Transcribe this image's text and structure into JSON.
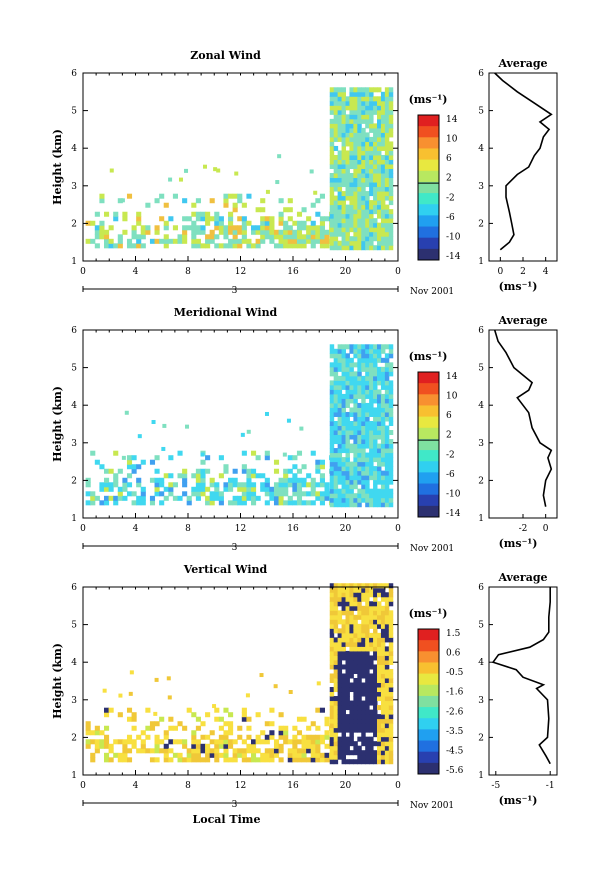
{
  "chart_data": [
    {
      "type": "heatmap",
      "title": "Zonal Wind",
      "ylabel": "Height (km)",
      "x_ticks": [
        "0",
        "4",
        "8",
        "12",
        "16",
        "20",
        "0"
      ],
      "y_ticks": [
        "1",
        "2",
        "3",
        "4",
        "5",
        "6"
      ],
      "xlim": [
        0,
        24
      ],
      "ylim": [
        1,
        6
      ],
      "date_marker": "3",
      "date_label": "Nov 2001",
      "colorbar": {
        "unit": "(ms⁻¹)",
        "tick_labels": [
          "14",
          "10",
          "6",
          "2",
          "-2",
          "-6",
          "-10",
          "-14"
        ],
        "range": [
          -14,
          14
        ]
      },
      "profile": {
        "title": "Average",
        "x_ticks": [
          "0",
          "2",
          "4"
        ],
        "y_ticks": [
          "1",
          "2",
          "3",
          "4",
          "5",
          "6"
        ],
        "xlabel": "(ms⁻¹)",
        "xlim": [
          -1,
          5
        ],
        "points": [
          [
            0,
            1.3
          ],
          [
            0.8,
            1.5
          ],
          [
            1.2,
            1.7
          ],
          [
            1.0,
            2.0
          ],
          [
            0.8,
            2.3
          ],
          [
            0.5,
            2.7
          ],
          [
            0.5,
            3.0
          ],
          [
            1.5,
            3.3
          ],
          [
            2.5,
            3.5
          ],
          [
            3.0,
            3.8
          ],
          [
            3.5,
            4.0
          ],
          [
            3.8,
            4.3
          ],
          [
            4.3,
            4.5
          ],
          [
            3.5,
            4.7
          ],
          [
            4.5,
            4.9
          ],
          [
            3.0,
            5.2
          ],
          [
            1.5,
            5.5
          ],
          [
            0.2,
            5.8
          ],
          [
            -0.5,
            6.0
          ]
        ]
      },
      "colors": {
        "weak": "#7fe0c0",
        "mid": "#c8e850",
        "east": "#f0c040",
        "west": "#40c8f0"
      }
    },
    {
      "type": "heatmap",
      "title": "Meridional Wind",
      "ylabel": "Height (km)",
      "x_ticks": [
        "0",
        "4",
        "8",
        "12",
        "16",
        "20",
        "0"
      ],
      "y_ticks": [
        "1",
        "2",
        "3",
        "4",
        "5",
        "6"
      ],
      "xlim": [
        0,
        24
      ],
      "ylim": [
        1,
        6
      ],
      "date_marker": "3",
      "date_label": "Nov 2001",
      "colorbar": {
        "unit": "(ms⁻¹)",
        "tick_labels": [
          "14",
          "10",
          "6",
          "2",
          "-2",
          "-6",
          "-10",
          "-14"
        ],
        "range": [
          -14,
          14
        ]
      },
      "profile": {
        "title": "Average",
        "x_ticks": [
          "-2",
          "0"
        ],
        "y_ticks": [
          "1",
          "2",
          "3",
          "4",
          "5",
          "6"
        ],
        "xlabel": "(ms⁻¹)",
        "xlim": [
          -5,
          1
        ],
        "points": [
          [
            0,
            1.3
          ],
          [
            -0.2,
            1.6
          ],
          [
            0,
            2.0
          ],
          [
            0.5,
            2.3
          ],
          [
            0.2,
            2.6
          ],
          [
            0.5,
            2.8
          ],
          [
            -0.5,
            3.0
          ],
          [
            -1.2,
            3.4
          ],
          [
            -1.5,
            3.8
          ],
          [
            -2.5,
            4.2
          ],
          [
            -1.5,
            4.4
          ],
          [
            -1.2,
            4.6
          ],
          [
            -2.0,
            4.8
          ],
          [
            -2.8,
            5.0
          ],
          [
            -3.5,
            5.4
          ],
          [
            -4.2,
            5.7
          ],
          [
            -4.5,
            6.0
          ]
        ]
      },
      "colors": {
        "weak": "#40d8f0",
        "mid": "#7fe0c0",
        "east": "#c8e850",
        "west": "#40a0f0"
      }
    },
    {
      "type": "heatmap",
      "title": "Vertical Wind",
      "ylabel": "Height (km)",
      "xlabel": "Local Time",
      "x_ticks": [
        "0",
        "4",
        "8",
        "12",
        "16",
        "20",
        "0"
      ],
      "y_ticks": [
        "1",
        "2",
        "3",
        "4",
        "5",
        "6"
      ],
      "xlim": [
        0,
        24
      ],
      "ylim": [
        1,
        6
      ],
      "date_marker": "3",
      "date_label": "Nov 2001",
      "colorbar": {
        "unit": "(ms⁻¹)",
        "tick_labels": [
          "1.5",
          "0.6",
          "-0.5",
          "-1.6",
          "-2.6",
          "-3.5",
          "-4.5",
          "-5.6"
        ],
        "range": [
          -5.6,
          1.5
        ]
      },
      "profile": {
        "title": "Average",
        "x_ticks": [
          "-5",
          "-1"
        ],
        "y_ticks": [
          "1",
          "2",
          "3",
          "4",
          "5",
          "6"
        ],
        "xlabel": "(ms⁻¹)",
        "xlim": [
          -5.5,
          -0.5
        ],
        "points": [
          [
            -1.0,
            1.3
          ],
          [
            -1.3,
            1.5
          ],
          [
            -1.8,
            1.8
          ],
          [
            -1.2,
            2.0
          ],
          [
            -1.1,
            2.5
          ],
          [
            -1.2,
            3.0
          ],
          [
            -2.0,
            3.3
          ],
          [
            -1.5,
            3.4
          ],
          [
            -3.0,
            3.6
          ],
          [
            -3.5,
            3.8
          ],
          [
            -5.2,
            4.0
          ],
          [
            -4.8,
            4.2
          ],
          [
            -2.5,
            4.4
          ],
          [
            -1.5,
            4.6
          ],
          [
            -1.1,
            4.8
          ],
          [
            -1.1,
            5.2
          ],
          [
            -1.0,
            5.6
          ],
          [
            -1.0,
            6.0
          ]
        ]
      },
      "colors": {
        "weak": "#f8e040",
        "mid": "#f0c838",
        "east": "#c8e850",
        "west": "#2c3070"
      }
    }
  ]
}
